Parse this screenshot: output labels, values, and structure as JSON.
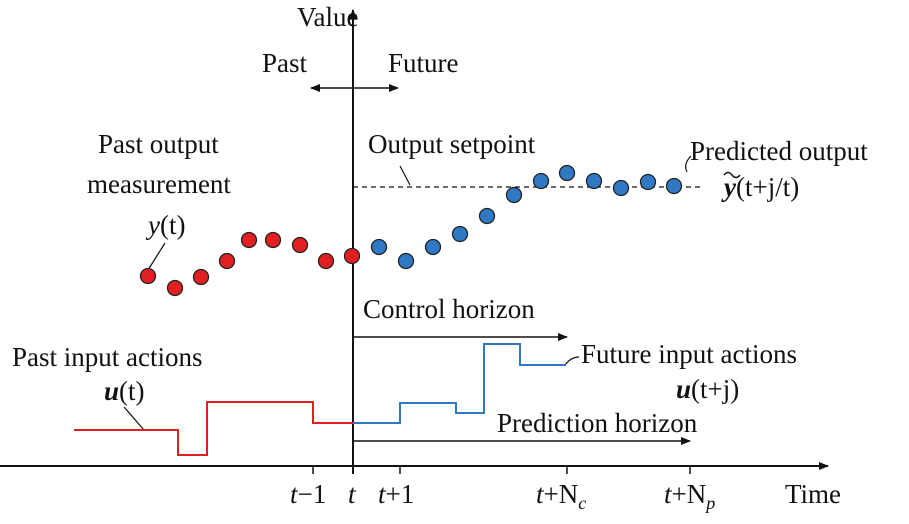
{
  "colors": {
    "axis": "#111111",
    "past": "#e02020",
    "future": "#2f78c4",
    "point_stroke": "#222222",
    "background": "#ffffff"
  },
  "labels": {
    "value_axis": "Value",
    "time_axis": "Time",
    "past": "Past",
    "future": "Future",
    "past_output_line1": "Past output",
    "past_output_line2": "measurement",
    "y_t_var": "y",
    "y_t_arg": "(t)",
    "output_setpoint": "Output setpoint",
    "predicted_output": "Predicted output",
    "predicted_expr_var": "y",
    "predicted_expr_arg": "(t+j/t)",
    "control_horizon": "Control horizon",
    "prediction_horizon": "Prediction horizon",
    "past_input_actions": "Past input actions",
    "u_t_var": "u",
    "u_t_arg": "(t)",
    "future_input_actions": "Future input actions",
    "u_tj_var": "u",
    "u_tj_arg": "(t+j)"
  },
  "ticks": [
    {
      "id": "t-1",
      "base": "t",
      "op": "−1",
      "sub": ""
    },
    {
      "id": "t",
      "base": "t",
      "op": "",
      "sub": ""
    },
    {
      "id": "t+1",
      "base": "t",
      "op": "+1",
      "sub": ""
    },
    {
      "id": "t+Nc",
      "base": "t",
      "op": "+N",
      "sub": "c"
    },
    {
      "id": "t+Np",
      "base": "t",
      "op": "+N",
      "sub": "p"
    }
  ]
}
